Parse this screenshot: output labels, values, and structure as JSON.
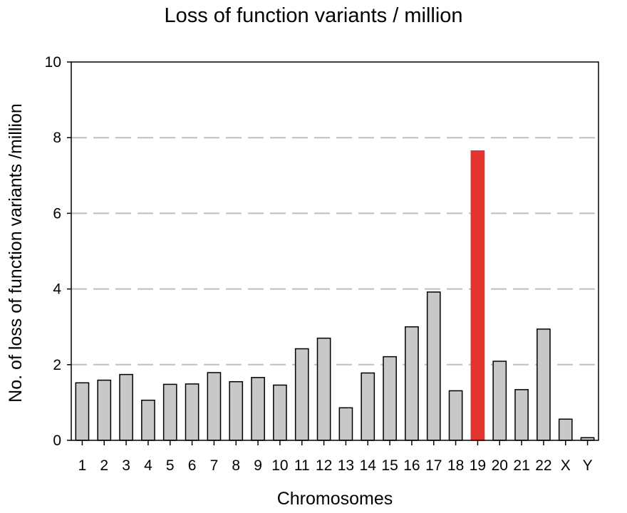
{
  "chart_data": {
    "type": "bar",
    "title": "Loss of function variants / million",
    "xlabel": "Chromosomes",
    "ylabel": "No. of loss of function variants /million",
    "categories": [
      "1",
      "2",
      "3",
      "4",
      "5",
      "6",
      "7",
      "8",
      "9",
      "10",
      "11",
      "12",
      "13",
      "14",
      "15",
      "16",
      "17",
      "18",
      "19",
      "20",
      "21",
      "22",
      "X",
      "Y"
    ],
    "values": [
      1.52,
      1.59,
      1.74,
      1.06,
      1.48,
      1.49,
      1.79,
      1.55,
      1.66,
      1.46,
      2.42,
      2.7,
      0.86,
      1.78,
      2.21,
      3.0,
      3.92,
      1.31,
      7.65,
      2.09,
      1.34,
      2.94,
      0.56,
      0.07
    ],
    "highlight_category": "19",
    "ylim": [
      0,
      10
    ],
    "yticks": [
      0,
      2,
      4,
      6,
      8,
      10
    ],
    "grid": "dashed horizontal at 2, 4, 6, 8",
    "colors": {
      "bar": "#c8c8c8",
      "highlight": "#e3342f",
      "grid": "#bfbfbf",
      "stroke": "#000000"
    }
  }
}
